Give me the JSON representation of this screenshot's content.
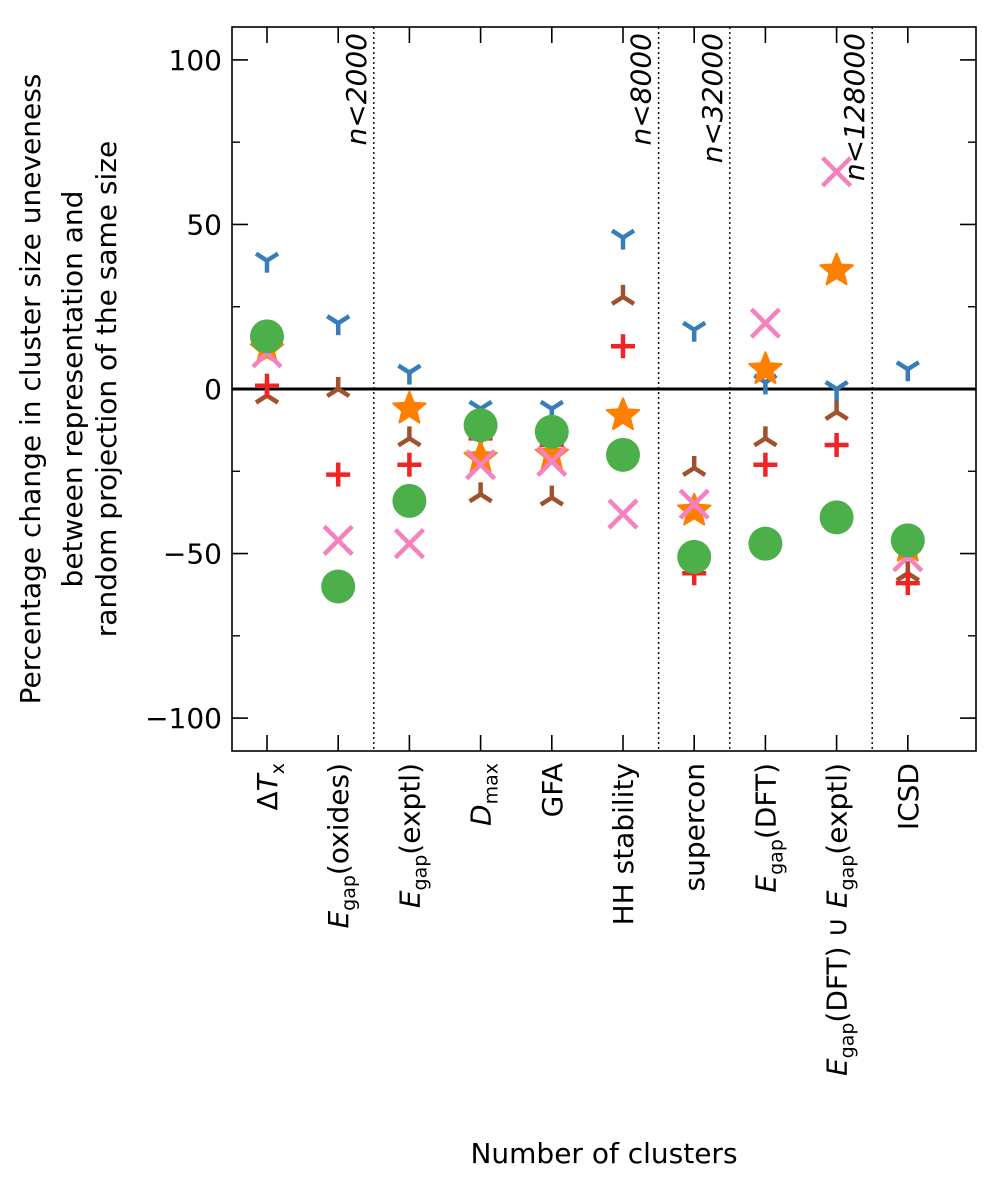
{
  "chart_data": {
    "type": "scatter",
    "xlabel": "Number of clusters",
    "ylabel_lines": [
      "Percentage change in cluster size uneveness",
      "between representation and",
      "random projection of the same size"
    ],
    "ylim": [
      -110,
      110
    ],
    "yticks": [
      -100,
      -50,
      0,
      50,
      100
    ],
    "ytick_labels": [
      "−100",
      "−50",
      "0",
      "50",
      "100"
    ],
    "grid": false,
    "legend": "none",
    "categories": [
      {
        "parts": [
          [
            "Δ",
            "n"
          ],
          [
            "T",
            "i"
          ],
          [
            "x",
            "s"
          ]
        ]
      },
      {
        "parts": [
          [
            "E",
            "i"
          ],
          [
            "gap",
            "s"
          ],
          [
            "(oxides)",
            "n"
          ]
        ]
      },
      {
        "parts": [
          [
            "E",
            "i"
          ],
          [
            "gap",
            "s"
          ],
          [
            "(exptl)",
            "n"
          ]
        ]
      },
      {
        "parts": [
          [
            "D",
            "i"
          ],
          [
            "max",
            "s"
          ]
        ]
      },
      {
        "parts": [
          [
            "GFA",
            "n"
          ]
        ]
      },
      {
        "parts": [
          [
            "HH stability",
            "n"
          ]
        ]
      },
      {
        "parts": [
          [
            "supercon",
            "n"
          ]
        ]
      },
      {
        "parts": [
          [
            "E",
            "i"
          ],
          [
            "gap",
            "s"
          ],
          [
            "(DFT)",
            "n"
          ]
        ]
      },
      {
        "parts": [
          [
            "E",
            "i"
          ],
          [
            "gap",
            "s"
          ],
          [
            "(DFT) ∪ ",
            "n"
          ],
          [
            "E",
            "i"
          ],
          [
            "gap",
            "s"
          ],
          [
            "(exptl)",
            "n"
          ]
        ]
      },
      {
        "parts": [
          [
            "ICSD",
            "n"
          ]
        ]
      }
    ],
    "thresholds": [
      {
        "after_index": 1,
        "label": "n<2000"
      },
      {
        "after_index": 5,
        "label": "n<8000"
      },
      {
        "after_index": 6,
        "label": "n<32000"
      },
      {
        "after_index": 8,
        "label": "n<128000"
      }
    ],
    "series": [
      {
        "marker": "tri-down",
        "color": "#a0522d",
        "values": [
          -2,
          0,
          -15,
          -32,
          -33,
          28,
          -24,
          -15,
          -7,
          -56
        ]
      },
      {
        "marker": "tri-up",
        "color": "#377eb8",
        "values": [
          39,
          20,
          5,
          -6,
          -6,
          46,
          18,
          2,
          0,
          6
        ]
      },
      {
        "marker": "plus",
        "color": "#f02424",
        "values": [
          1,
          -26,
          -23,
          -15,
          -17,
          13,
          -56,
          -23,
          -17,
          -59
        ]
      },
      {
        "marker": "star",
        "color": "#ff7f00",
        "values": [
          12,
          null,
          -6,
          -21,
          -20,
          -8,
          -37,
          6,
          36,
          -48
        ]
      },
      {
        "marker": "x",
        "color": "#f781bf",
        "values": [
          11,
          -46,
          -47,
          -23,
          -22,
          -38,
          -35,
          20,
          66,
          -51
        ]
      },
      {
        "marker": "circle",
        "color": "#4daf4a",
        "values": [
          16,
          -60,
          -34,
          -11,
          -13,
          -20,
          -51,
          -47,
          -39,
          -46
        ]
      }
    ]
  }
}
